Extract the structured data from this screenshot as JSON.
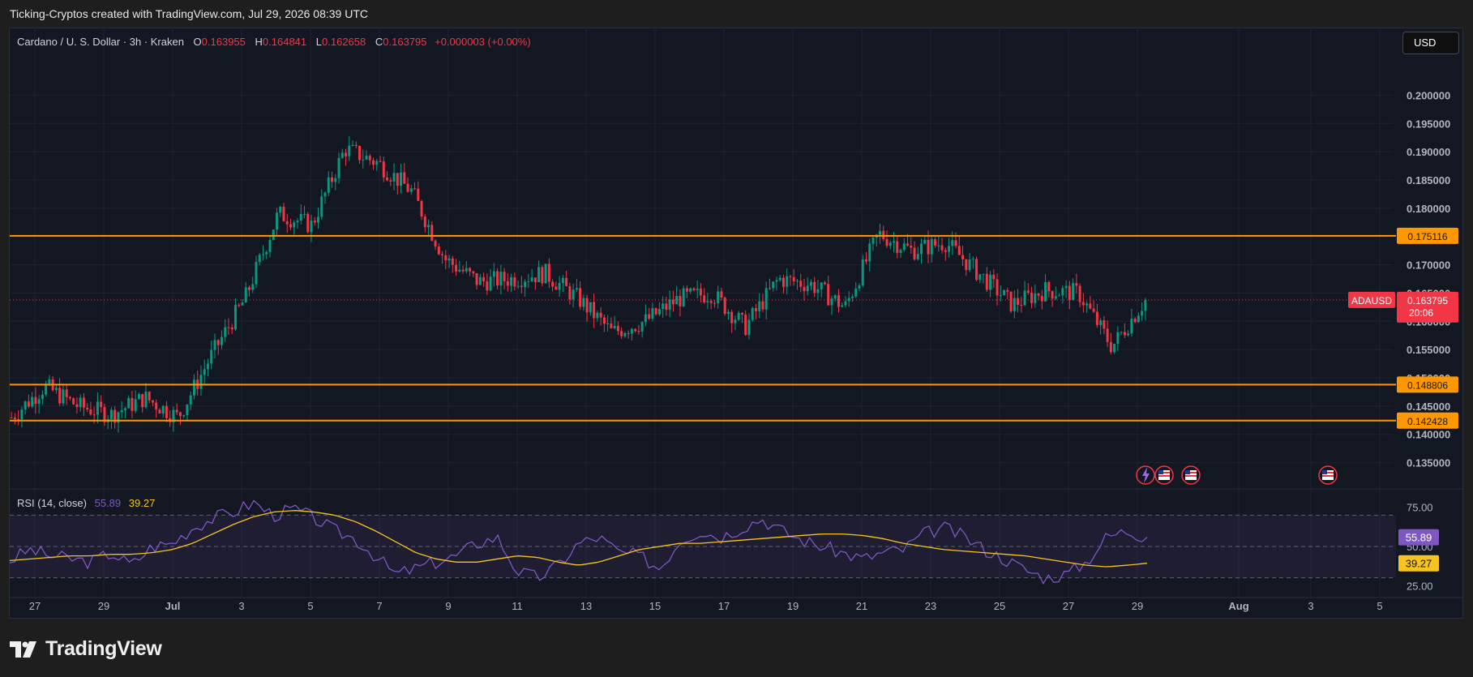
{
  "header": {
    "caption": "Ticking-Cryptos created with TradingView.com, Jul 29, 2026 08:39 UTC"
  },
  "symbol": {
    "title": "Cardano / U. S. Dollar · 3h · Kraken",
    "open_label": "O",
    "open": "0.163955",
    "high_label": "H",
    "high": "0.164841",
    "low_label": "L",
    "low": "0.162658",
    "close_label": "C",
    "close": "0.163795",
    "change": "+0.000003 (+0.00%)"
  },
  "currency_button": "USD",
  "price_tag": {
    "ticker": "ADAUSD",
    "price": "0.163795",
    "countdown": "20:06"
  },
  "rsi_legend": {
    "title": "RSI (14, close)",
    "rsi": "55.89",
    "ma": "39.27"
  },
  "branding": {
    "logo_text": "TradingView"
  },
  "colors": {
    "background": "#131722",
    "up": "#089981",
    "down": "#f23645",
    "level": "#ff9800",
    "rsi": "#7e57c2",
    "rsi_ma": "#f7c41f",
    "grid": "#1f2330"
  },
  "chart_data": [
    {
      "type": "candlestick",
      "title": "Cardano / U. S. Dollar · 3h · Kraken",
      "ylim": [
        0.1325,
        0.2025
      ],
      "y_ticks": [
        "0.200000",
        "0.195000",
        "0.190000",
        "0.185000",
        "0.180000",
        "0.175000",
        "0.170000",
        "0.165000",
        "0.160000",
        "0.155000",
        "0.150000",
        "0.145000",
        "0.140000",
        "0.135000"
      ],
      "x_ticks": [
        "27",
        "29",
        "Jul",
        "3",
        "5",
        "7",
        "9",
        "11",
        "13",
        "15",
        "17",
        "19",
        "21",
        "23",
        "25",
        "27",
        "29",
        "Aug",
        "3",
        "5"
      ],
      "horizontal_levels": [
        {
          "value": 0.175116,
          "label": "0.175116"
        },
        {
          "value": 0.148806,
          "label": "0.148806"
        },
        {
          "value": 0.142428,
          "label": "0.142428"
        }
      ],
      "last_price": 0.163795,
      "close_series": [
        {
          "x": "Jun 26",
          "y": 0.143
        },
        {
          "x": "Jun 27",
          "y": 0.1485
        },
        {
          "x": "Jun 28",
          "y": 0.145
        },
        {
          "x": "Jun 29",
          "y": 0.1435
        },
        {
          "x": "Jun 30",
          "y": 0.1465
        },
        {
          "x": "Jul 1",
          "y": 0.143
        },
        {
          "x": "Jul 2",
          "y": 0.154
        },
        {
          "x": "Jul 3",
          "y": 0.164
        },
        {
          "x": "Jul 4",
          "y": 0.179
        },
        {
          "x": "Jul 4 12:00",
          "y": 0.177
        },
        {
          "x": "Jul 5",
          "y": 0.1905
        },
        {
          "x": "Jul 6",
          "y": 0.188
        },
        {
          "x": "Jul 7",
          "y": 0.183
        },
        {
          "x": "Jul 8",
          "y": 0.171
        },
        {
          "x": "Jul 9",
          "y": 0.167
        },
        {
          "x": "Jul 10",
          "y": 0.1675
        },
        {
          "x": "Jul 11",
          "y": 0.1685
        },
        {
          "x": "Jul 12",
          "y": 0.164
        },
        {
          "x": "Jul 13",
          "y": 0.158
        },
        {
          "x": "Jul 14",
          "y": 0.16
        },
        {
          "x": "Jul 15",
          "y": 0.164
        },
        {
          "x": "Jul 16",
          "y": 0.165
        },
        {
          "x": "Jul 17",
          "y": 0.159
        },
        {
          "x": "Jul 18",
          "y": 0.1675
        },
        {
          "x": "Jul 19",
          "y": 0.1665
        },
        {
          "x": "Jul 20",
          "y": 0.1625
        },
        {
          "x": "Jul 21",
          "y": 0.1755
        },
        {
          "x": "Jul 22",
          "y": 0.1725
        },
        {
          "x": "Jul 23",
          "y": 0.174
        },
        {
          "x": "Jul 24",
          "y": 0.1685
        },
        {
          "x": "Jul 25",
          "y": 0.163
        },
        {
          "x": "Jul 26",
          "y": 0.1655
        },
        {
          "x": "Jul 27",
          "y": 0.165
        },
        {
          "x": "Jul 28",
          "y": 0.1555
        },
        {
          "x": "Jul 29",
          "y": 0.1638
        }
      ]
    },
    {
      "type": "line",
      "title": "RSI (14, close)",
      "ylim": [
        21,
        79
      ],
      "y_ticks": [
        "75.00",
        "50.00",
        "25.00"
      ],
      "bands": {
        "upper": 70,
        "middle": 50,
        "lower": 30
      },
      "series": [
        {
          "name": "RSI",
          "values": [
            41,
            48,
            44,
            42,
            40,
            46,
            38,
            50,
            52,
            62,
            68,
            72,
            78,
            70,
            74,
            68,
            60,
            55,
            44,
            32,
            36,
            40,
            44,
            52,
            56,
            34,
            30,
            38,
            52,
            56,
            46,
            44,
            36,
            54,
            60,
            56,
            62,
            68,
            60,
            54,
            50,
            46,
            42,
            46,
            48,
            58,
            62,
            56,
            48,
            42,
            35,
            30,
            32,
            40,
            56,
            60,
            56
          ],
          "last": 55.89
        },
        {
          "name": "MA",
          "values": [
            41,
            42,
            43,
            44,
            44,
            45,
            45,
            46,
            48,
            52,
            58,
            64,
            69,
            72,
            73,
            72,
            70,
            66,
            60,
            53,
            46,
            42,
            40,
            40,
            42,
            44,
            43,
            40,
            38,
            40,
            44,
            48,
            50,
            52,
            52,
            53,
            54,
            55,
            56,
            57,
            58,
            58,
            57,
            55,
            52,
            50,
            48,
            47,
            46,
            45,
            44,
            42,
            40,
            38,
            37,
            38,
            39.27
          ],
          "last": 39.27
        }
      ]
    }
  ]
}
